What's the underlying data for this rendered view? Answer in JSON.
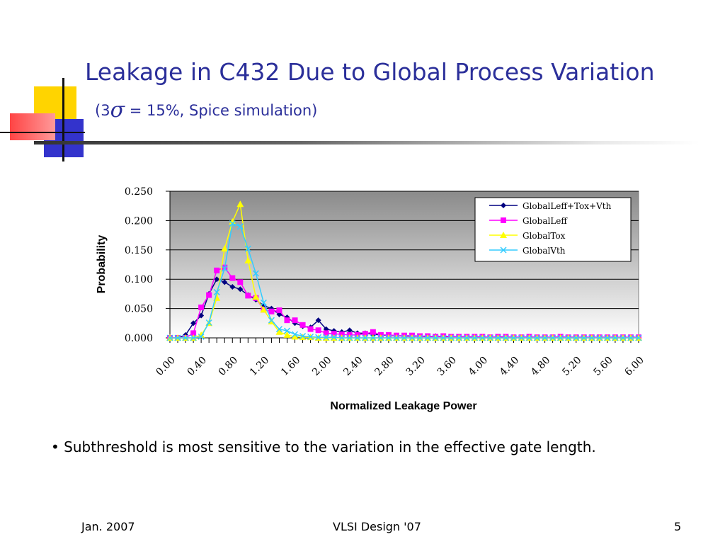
{
  "slide": {
    "title": "Leakage in C432 Due to Global Process Variation",
    "subtitle_prefix": "(3",
    "subtitle_sigma": "σ",
    "subtitle_suffix": " = 15%, Spice simulation)",
    "bullet": "• Subthreshold is most sensitive to the variation in the effective gate length.",
    "footer_left": "Jan. 2007",
    "footer_center": "VLSI Design '07",
    "footer_right": "5"
  },
  "colors": {
    "title": "#2b2f9a",
    "deco_yellow": "#ffd400",
    "deco_blue": "#3333cc",
    "deco_red": "#ff5555"
  },
  "chart_data": {
    "type": "line",
    "xlabel": "Normalized Leakage Power",
    "ylabel": "Probability",
    "ylim": [
      0,
      0.25
    ],
    "y_ticks": [
      "0.000",
      "0.050",
      "0.100",
      "0.150",
      "0.200",
      "0.250"
    ],
    "x_tick_labels": [
      "0.00",
      "0.40",
      "0.80",
      "1.20",
      "1.60",
      "2.00",
      "2.40",
      "2.80",
      "3.20",
      "3.60",
      "4.00",
      "4.40",
      "4.80",
      "5.20",
      "5.60",
      "6.00"
    ],
    "x": [
      0.0,
      0.1,
      0.2,
      0.3,
      0.4,
      0.5,
      0.6,
      0.7,
      0.8,
      0.9,
      1.0,
      1.1,
      1.2,
      1.3,
      1.4,
      1.5,
      1.6,
      1.7,
      1.8,
      1.9,
      2.0,
      2.1,
      2.2,
      2.3,
      2.4,
      2.5,
      2.6,
      2.7,
      2.8,
      2.9,
      3.0,
      3.1,
      3.2,
      3.3,
      3.4,
      3.5,
      3.6,
      3.7,
      3.8,
      3.9,
      4.0,
      4.1,
      4.2,
      4.3,
      4.4,
      4.5,
      4.6,
      4.7,
      4.8,
      4.9,
      5.0,
      5.1,
      5.2,
      5.3,
      5.4,
      5.5,
      5.6,
      5.7,
      5.8,
      5.9,
      6.0
    ],
    "grid": true,
    "legend_position": "top-right",
    "series": [
      {
        "name": "GlobalLeff+Tox+Vth",
        "color": "#000080",
        "marker": "diamond",
        "values": [
          0,
          0,
          0.005,
          0.025,
          0.038,
          0.075,
          0.1,
          0.095,
          0.087,
          0.083,
          0.073,
          0.065,
          0.055,
          0.05,
          0.04,
          0.035,
          0.025,
          0.02,
          0.018,
          0.03,
          0.015,
          0.012,
          0.01,
          0.013,
          0.008,
          0.008,
          0.006,
          0.005,
          0.004,
          0.004,
          0.003,
          0.003,
          0.003,
          0.002,
          0.003,
          0.002,
          0.002,
          0.002,
          0.002,
          0.001,
          0.001,
          0.001,
          0.001,
          0.001,
          0.001,
          0.001,
          0.001,
          0.001,
          0.001,
          0.001,
          0.001,
          0.001,
          0.001,
          0.001,
          0.001,
          0.001,
          0.001,
          0.001,
          0.001,
          0.001,
          0.001
        ]
      },
      {
        "name": "GlobalLeff",
        "color": "#ff00ff",
        "marker": "square",
        "values": [
          0,
          0,
          0,
          0.008,
          0.052,
          0.073,
          0.115,
          0.12,
          0.102,
          0.095,
          0.072,
          0.068,
          0.048,
          0.045,
          0.047,
          0.03,
          0.03,
          0.022,
          0.015,
          0.013,
          0.008,
          0.007,
          0.006,
          0.005,
          0.005,
          0.007,
          0.01,
          0.005,
          0.005,
          0.004,
          0.004,
          0.004,
          0.003,
          0.003,
          0.002,
          0.003,
          0.002,
          0.002,
          0.002,
          0.002,
          0.002,
          0.001,
          0.002,
          0.002,
          0.001,
          0.001,
          0.002,
          0.001,
          0.001,
          0.001,
          0.002,
          0.001,
          0.001,
          0.001,
          0.001,
          0.001,
          0.001,
          0.001,
          0.001,
          0.001,
          0.001
        ]
      },
      {
        "name": "GlobalTox",
        "color": "#ffff00",
        "marker": "triangle",
        "values": [
          0,
          0,
          0,
          0,
          0.005,
          0.025,
          0.068,
          0.152,
          0.198,
          0.228,
          0.132,
          0.07,
          0.048,
          0.028,
          0.01,
          0.005,
          0.002,
          0.001,
          0.001,
          0,
          0,
          0,
          0,
          0,
          0,
          0,
          0,
          0,
          0,
          0,
          0,
          0,
          0,
          0,
          0,
          0,
          0,
          0,
          0,
          0,
          0,
          0,
          0,
          0,
          0,
          0,
          0,
          0,
          0,
          0,
          0,
          0,
          0,
          0,
          0,
          0,
          0,
          0,
          0,
          0,
          0
        ]
      },
      {
        "name": "GlobalVth",
        "color": "#33ccff",
        "marker": "x",
        "values": [
          0,
          0,
          0,
          0,
          0.002,
          0.026,
          0.078,
          0.118,
          0.195,
          0.19,
          0.152,
          0.11,
          0.06,
          0.03,
          0.015,
          0.012,
          0.006,
          0.003,
          0.002,
          0.001,
          0.001,
          0.001,
          0,
          0,
          0,
          0,
          0,
          0,
          0,
          0,
          0,
          0,
          0,
          0,
          0,
          0,
          0,
          0,
          0,
          0,
          0,
          0,
          0,
          0,
          0,
          0,
          0,
          0,
          0,
          0,
          0,
          0,
          0,
          0,
          0,
          0,
          0,
          0,
          0,
          0,
          0
        ]
      }
    ]
  }
}
